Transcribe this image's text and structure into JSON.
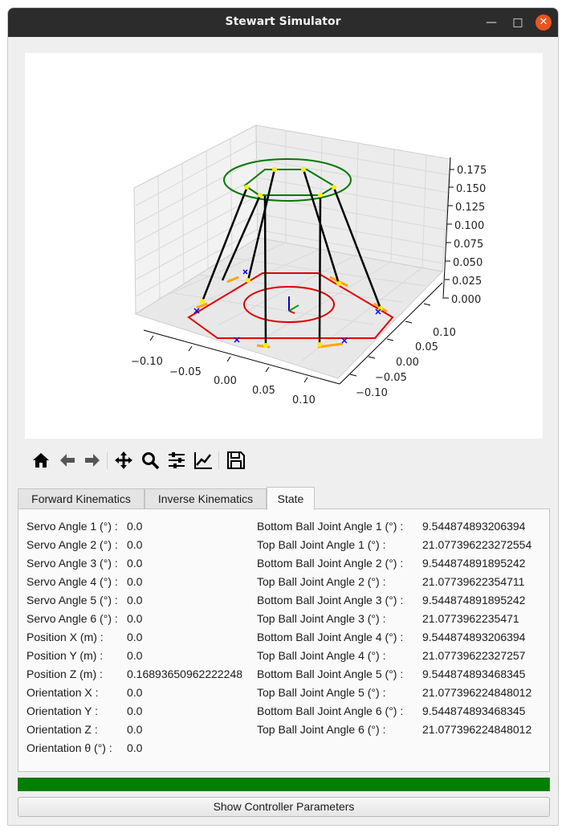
{
  "window": {
    "title": "Stewart Simulator"
  },
  "plot": {
    "z_ticks": [
      "0.175",
      "0.150",
      "0.125",
      "0.100",
      "0.075",
      "0.050",
      "0.025",
      "0.000"
    ],
    "x_ticks": [
      "−0.10",
      "−0.05",
      "0.00",
      "0.05",
      "0.10"
    ],
    "y_ticks": [
      "0.10",
      "0.05",
      "0.00",
      "−0.05",
      "−0.10"
    ],
    "colors": {
      "base": "#e00000",
      "platform": "#007a00",
      "legs": "#000000",
      "servo_arms": "#ffa500",
      "joints": "#ffff00",
      "anchors": "#0000ff"
    }
  },
  "toolbar": {
    "items": [
      "home-icon",
      "back-arrow-icon",
      "forward-arrow-icon",
      "pan-move-icon",
      "zoom-magnifier-icon",
      "subplot-config-icon",
      "edit-axis-icon",
      "save-disk-icon"
    ]
  },
  "tabs": [
    {
      "label": "Forward Kinematics"
    },
    {
      "label": "Inverse Kinematics"
    },
    {
      "label": "State"
    }
  ],
  "state": {
    "left": [
      {
        "label": "Servo Angle 1 (°) :",
        "value": "0.0"
      },
      {
        "label": "Servo Angle 2 (°) :",
        "value": "0.0"
      },
      {
        "label": "Servo Angle 3 (°) :",
        "value": "0.0"
      },
      {
        "label": "Servo Angle 4 (°) :",
        "value": "0.0"
      },
      {
        "label": "Servo Angle 5 (°) :",
        "value": "0.0"
      },
      {
        "label": "Servo Angle 6 (°) :",
        "value": "0.0"
      },
      {
        "label": "Position X (m) :",
        "value": "0.0"
      },
      {
        "label": "Position Y (m) :",
        "value": "0.0"
      },
      {
        "label": "Position Z (m) :",
        "value": "0.16893650962222248"
      },
      {
        "label": "Orientation X :",
        "value": "0.0"
      },
      {
        "label": "Orientation Y :",
        "value": "0.0"
      },
      {
        "label": "Orientation Z :",
        "value": "0.0"
      },
      {
        "label": "Orientation θ (°) :",
        "value": "0.0"
      }
    ],
    "right": [
      {
        "label": "Bottom Ball Joint Angle 1 (°) :",
        "value": "9.544874893206394"
      },
      {
        "label": "Top Ball Joint Angle 1 (°) :",
        "value": "21.077396223272554"
      },
      {
        "label": "Bottom Ball Joint Angle 2 (°) :",
        "value": "9.544874891895242"
      },
      {
        "label": "Top Ball Joint Angle 2 (°) :",
        "value": "21.07739622354711"
      },
      {
        "label": "Bottom Ball Joint Angle 3 (°) :",
        "value": "9.544874891895242"
      },
      {
        "label": "Top Ball Joint Angle 3 (°) :",
        "value": "21.0773962235471"
      },
      {
        "label": "Bottom Ball Joint Angle 4 (°) :",
        "value": "9.544874893206394"
      },
      {
        "label": "Top Ball Joint Angle 4 (°) :",
        "value": "21.07739622327257"
      },
      {
        "label": "Bottom Ball Joint Angle 5 (°) :",
        "value": "9.544874893468345"
      },
      {
        "label": "Top Ball Joint Angle 5 (°) :",
        "value": "21.077396224848012"
      },
      {
        "label": "Bottom Ball Joint Angle 6 (°) :",
        "value": "9.544874893468345"
      },
      {
        "label": "Top Ball Joint Angle 6 (°) :",
        "value": "21.077396224848012"
      }
    ]
  },
  "progress": {
    "value": 1.0,
    "color": "#007f00"
  },
  "footer": {
    "controller_button": "Show Controller Parameters"
  }
}
